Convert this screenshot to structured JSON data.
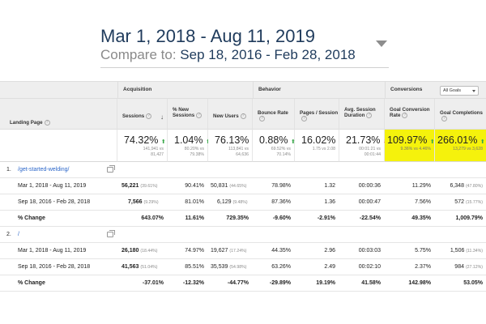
{
  "date_range": {
    "primary": "Mar 1, 2018 - Aug 11, 2019",
    "compare_label": "Compare to:",
    "compare_value": "Sep 18, 2016 - Feb 28, 2018"
  },
  "groups": {
    "acquisition": "Acquisition",
    "behavior": "Behavior",
    "conversions": "Conversions",
    "goals_select": "All Goals"
  },
  "columns": {
    "landing_page": "Landing Page",
    "sessions": "Sessions",
    "new_sessions": "% New Sessions",
    "new_users": "New Users",
    "bounce_rate": "Bounce Rate",
    "pages_session": "Pages / Session",
    "avg_duration": "Avg. Session Duration",
    "goal_conv_rate": "Goal Conversion Rate",
    "goal_completions": "Goal Completions"
  },
  "totals": {
    "sessions": {
      "value": "74.32%",
      "sub": "141,941 vs\n81,427",
      "dir": "up"
    },
    "new_sessions": {
      "value": "1.04%",
      "sub": "80.20% vs\n79.38%",
      "dir": "up"
    },
    "new_users": {
      "value": "76.13%",
      "sub": "113,841 vs\n64,636",
      "dir": "up"
    },
    "bounce_rate": {
      "value": "0.88%",
      "sub": "69.52% vs\n70.14%",
      "dir": "up"
    },
    "pages_session": {
      "value": "16.02%",
      "sub": "1.75 vs 2.08",
      "dir": "down"
    },
    "avg_duration": {
      "value": "21.73%",
      "sub": "00:01:21 vs\n00:01:44",
      "dir": "down"
    },
    "goal_conv_rate": {
      "value": "109.97%",
      "sub": "9.36% vs 4.46%",
      "dir": "up"
    },
    "goal_completions": {
      "value": "266.01%",
      "sub": "13,279 vs 3,628",
      "dir": "up"
    }
  },
  "pages": [
    {
      "index": "1.",
      "path": "/get-started-welding/",
      "rows": [
        {
          "label": "Mar 1, 2018 - Aug 11, 2019",
          "sessions": "56,221",
          "sessions_pct": "(39.61%)",
          "new_sessions": "90.41%",
          "new_users": "50,831",
          "new_users_pct": "(44.65%)",
          "bounce_rate": "78.98%",
          "pages_session": "1.32",
          "avg_duration": "00:00:36",
          "goal_conv_rate": "11.29%",
          "goal_completions": "6,348",
          "goal_completions_pct": "(47.80%)"
        },
        {
          "label": "Sep 18, 2016 - Feb 28, 2018",
          "sessions": "7,566",
          "sessions_pct": "(9.29%)",
          "new_sessions": "81.01%",
          "new_users": "6,129",
          "new_users_pct": "(9.48%)",
          "bounce_rate": "87.36%",
          "pages_session": "1.36",
          "avg_duration": "00:00:47",
          "goal_conv_rate": "7.56%",
          "goal_completions": "572",
          "goal_completions_pct": "(15.77%)"
        },
        {
          "label": "% Change",
          "sessions": "643.07%",
          "sessions_pct": "",
          "new_sessions": "11.61%",
          "new_users": "729.35%",
          "new_users_pct": "",
          "bounce_rate": "-9.60%",
          "pages_session": "-2.91%",
          "avg_duration": "-22.54%",
          "goal_conv_rate": "49.35%",
          "goal_completions": "1,009.79%",
          "goal_completions_pct": ""
        }
      ]
    },
    {
      "index": "2.",
      "path": "/",
      "rows": [
        {
          "label": "Mar 1, 2018 - Aug 11, 2019",
          "sessions": "26,180",
          "sessions_pct": "(18.44%)",
          "new_sessions": "74.97%",
          "new_users": "19,627",
          "new_users_pct": "(17.24%)",
          "bounce_rate": "44.35%",
          "pages_session": "2.96",
          "avg_duration": "00:03:03",
          "goal_conv_rate": "5.75%",
          "goal_completions": "1,506",
          "goal_completions_pct": "(11.34%)"
        },
        {
          "label": "Sep 18, 2016 - Feb 28, 2018",
          "sessions": "41,563",
          "sessions_pct": "(51.04%)",
          "new_sessions": "85.51%",
          "new_users": "35,539",
          "new_users_pct": "(54.98%)",
          "bounce_rate": "63.26%",
          "pages_session": "2.49",
          "avg_duration": "00:02:10",
          "goal_conv_rate": "2.37%",
          "goal_completions": "984",
          "goal_completions_pct": "(27.12%)"
        },
        {
          "label": "% Change",
          "sessions": "-37.01%",
          "sessions_pct": "",
          "new_sessions": "-12.32%",
          "new_users": "-44.77%",
          "new_users_pct": "",
          "bounce_rate": "-29.89%",
          "pages_session": "19.19%",
          "avg_duration": "41.58%",
          "goal_conv_rate": "142.98%",
          "goal_completions": "53.05%",
          "goal_completions_pct": ""
        }
      ]
    }
  ],
  "colors": {
    "highlight": "#f5f20c",
    "link": "#2b66c9",
    "up": "#3aa84a",
    "down": "#e0342b"
  }
}
